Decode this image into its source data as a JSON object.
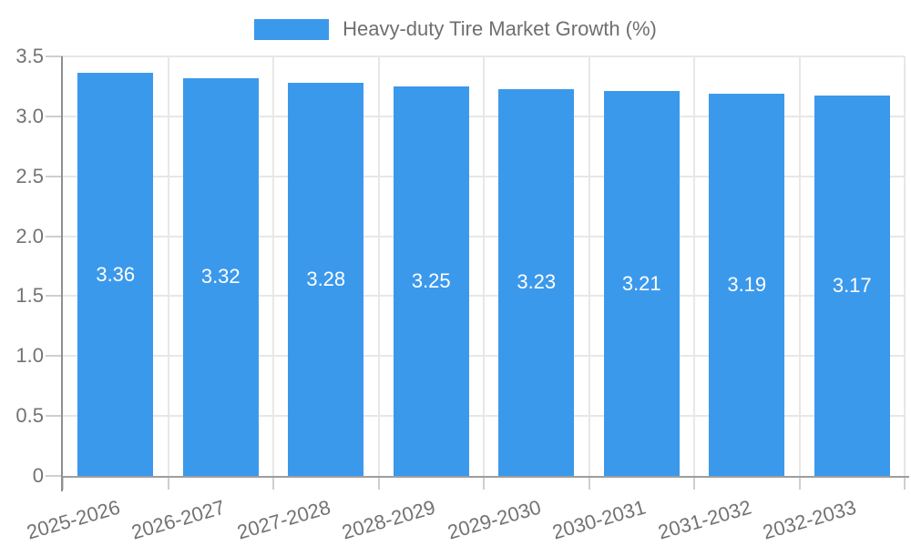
{
  "chart_data": {
    "type": "bar",
    "title": "Heavy-duty Tire Market Growth (%)",
    "legend_entries": [
      "Heavy-duty Tire Market Growth (%)"
    ],
    "legend_position": "top-center",
    "categories": [
      "2025-2026",
      "2026-2027",
      "2027-2028",
      "2028-2029",
      "2029-2030",
      "2030-2031",
      "2031-2032",
      "2032-2033"
    ],
    "series": [
      {
        "name": "Heavy-duty Tire Market Growth (%)",
        "values": [
          3.36,
          3.32,
          3.28,
          3.25,
          3.23,
          3.21,
          3.19,
          3.17
        ]
      }
    ],
    "value_labels": [
      "3.36",
      "3.32",
      "3.28",
      "3.25",
      "3.23",
      "3.21",
      "3.19",
      "3.17"
    ],
    "xlabel": "",
    "ylabel": "",
    "ylim": [
      0,
      3.5
    ],
    "ytick_values": [
      0,
      0.5,
      1,
      1.5,
      2,
      2.5,
      3,
      3.5
    ],
    "ytick_labels": [
      "0",
      "0.5",
      "1.0",
      "1.5",
      "2.0",
      "2.5",
      "3.0",
      "3.5"
    ],
    "grid": true,
    "colors": {
      "bar": "#3B99EC",
      "grid_line": "#E7E7E7",
      "axis_line": "#9E9E9E",
      "tick_mark": "#CFCFCF",
      "axis_text": "#737373",
      "legend_text": "#6F6F6F",
      "value_label_text": "#FFFFFF"
    }
  }
}
